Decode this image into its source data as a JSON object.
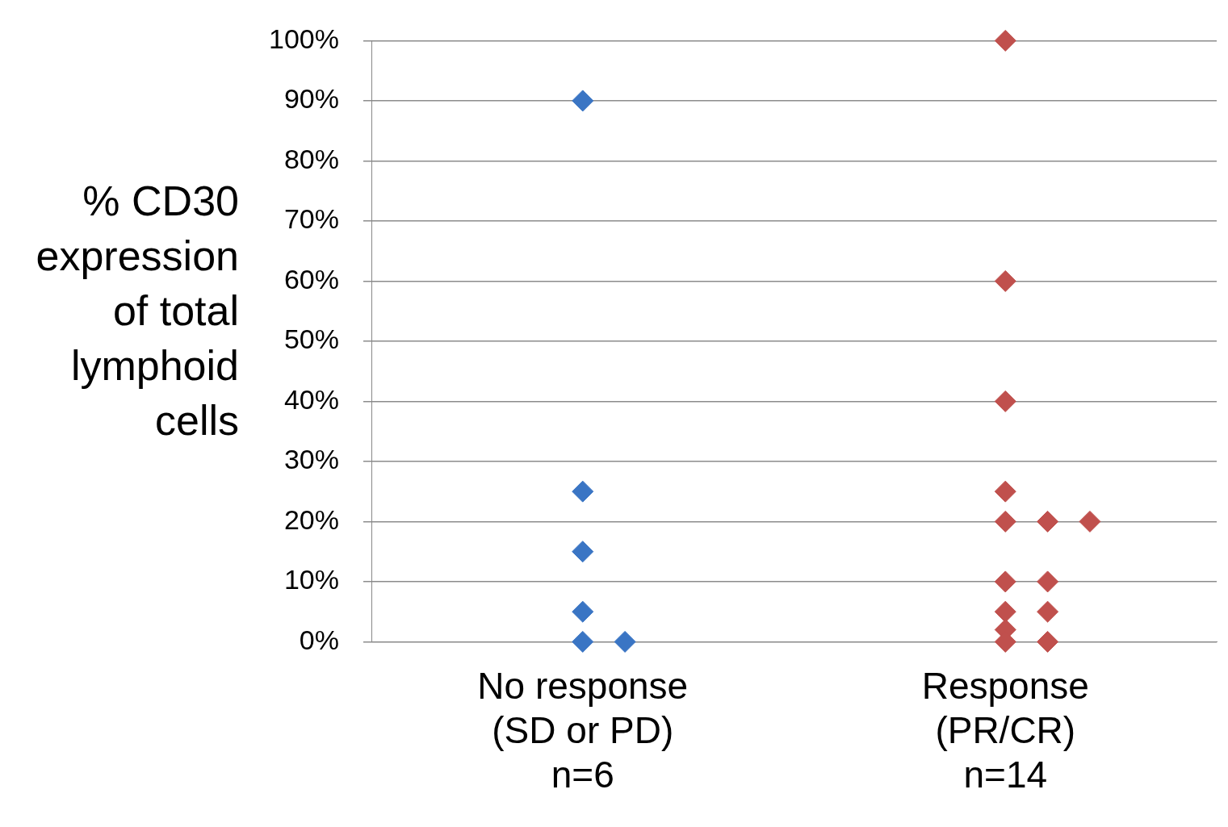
{
  "chart_data": {
    "type": "scatter",
    "ylabel": "% CD30\nexpression\nof total\nlymphoid\ncells",
    "categories": [
      "No response\n(SD or PD)\nn=6",
      "Response\n(PR/CR)\nn=14"
    ],
    "ylim": [
      0,
      100
    ],
    "yticks": [
      {
        "value": 0,
        "label": "0%"
      },
      {
        "value": 10,
        "label": "10%"
      },
      {
        "value": 20,
        "label": "20%"
      },
      {
        "value": 30,
        "label": "30%"
      },
      {
        "value": 40,
        "label": "40%"
      },
      {
        "value": 50,
        "label": "50%"
      },
      {
        "value": 60,
        "label": "60%"
      },
      {
        "value": 70,
        "label": "70%"
      },
      {
        "value": 80,
        "label": "80%"
      },
      {
        "value": 90,
        "label": "90%"
      },
      {
        "value": 100,
        "label": "100%"
      }
    ],
    "series": [
      {
        "color": "#3a75c4",
        "x": [
          "No response\n(SD or PD)\nn=6",
          "No response\n(SD or PD)\nn=6",
          "No response\n(SD or PD)\nn=6",
          "No response\n(SD or PD)\nn=6",
          "No response\n(SD or PD)\nn=6",
          "No response\n(SD or PD)\nn=6"
        ],
        "values": [
          90,
          25,
          15,
          5,
          0,
          0
        ]
      },
      {
        "color": "#c0504d",
        "x": [
          "Response\n(PR/CR)\nn=14",
          "Response\n(PR/CR)\nn=14",
          "Response\n(PR/CR)\nn=14",
          "Response\n(PR/CR)\nn=14",
          "Response\n(PR/CR)\nn=14",
          "Response\n(PR/CR)\nn=14",
          "Response\n(PR/CR)\nn=14",
          "Response\n(PR/CR)\nn=14",
          "Response\n(PR/CR)\nn=14",
          "Response\n(PR/CR)\nn=14",
          "Response\n(PR/CR)\nn=14",
          "Response\n(PR/CR)\nn=14",
          "Response\n(PR/CR)\nn=14",
          "Response\n(PR/CR)\nn=14"
        ],
        "values": [
          100,
          60,
          40,
          25,
          20,
          20,
          20,
          10,
          10,
          5,
          5,
          2,
          0,
          0
        ]
      }
    ],
    "grid": "y",
    "legend": false,
    "marker": "diamond"
  }
}
